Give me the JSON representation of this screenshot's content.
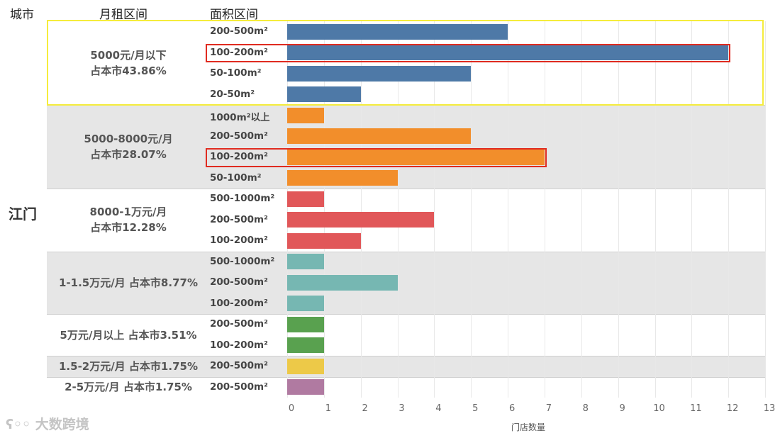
{
  "headers": {
    "city": "城市",
    "rent": "月租区间",
    "area": "面积区间"
  },
  "city": "江门",
  "watermark": "大数跨境",
  "colors": {
    "blue": "#4e79a7",
    "orange": "#f28e2b",
    "red": "#e15759",
    "teal": "#76b7b2",
    "green": "#59a14f",
    "yellow": "#edc948",
    "purple": "#b07aa1",
    "yellow_box": "#f5ec3c",
    "red_box": "#e02b20"
  },
  "chart_data": {
    "type": "bar",
    "orientation": "horizontal",
    "xlabel": "门店数量",
    "xlim": [
      0,
      13
    ],
    "xticks": [
      0,
      1,
      2,
      3,
      4,
      5,
      6,
      7,
      8,
      9,
      10,
      11,
      12,
      13
    ],
    "groups": [
      {
        "line1": "5000元/月以下",
        "line2": "占本市43.86%",
        "label": "",
        "color": "#4e79a7",
        "shaded": false,
        "bars": [
          {
            "area": "200-500m²",
            "value": 6
          },
          {
            "area": "100-200m²",
            "value": 12
          },
          {
            "area": "50-100m²",
            "value": 5
          },
          {
            "area": "20-50m²",
            "value": 2
          }
        ]
      },
      {
        "line1": "5000-8000元/月",
        "line2": "占本市28.07%",
        "label": "",
        "color": "#f28e2b",
        "shaded": true,
        "bars": [
          {
            "area": "1000m²以上",
            "value": 1
          },
          {
            "area": "200-500m²",
            "value": 5
          },
          {
            "area": "100-200m²",
            "value": 7
          },
          {
            "area": "50-100m²",
            "value": 3
          }
        ]
      },
      {
        "line1": "8000-1万元/月",
        "line2": "占本市12.28%",
        "label": "",
        "color": "#e15759",
        "shaded": false,
        "bars": [
          {
            "area": "500-1000m²",
            "value": 1
          },
          {
            "area": "200-500m²",
            "value": 4
          },
          {
            "area": "100-200m²",
            "value": 2
          }
        ]
      },
      {
        "line1": "",
        "line2": "",
        "label": "1-1.5万元/月  占本市8.77%",
        "color": "#76b7b2",
        "shaded": true,
        "bars": [
          {
            "area": "500-1000m²",
            "value": 1
          },
          {
            "area": "200-500m²",
            "value": 3
          },
          {
            "area": "100-200m²",
            "value": 1
          }
        ]
      },
      {
        "line1": "",
        "line2": "",
        "label": "5万元/月以上  占本市3.51%",
        "color": "#59a14f",
        "shaded": false,
        "bars": [
          {
            "area": "200-500m²",
            "value": 1
          },
          {
            "area": "100-200m²",
            "value": 1
          }
        ]
      },
      {
        "line1": "",
        "line2": "",
        "label": "1.5-2万元/月  占本市1.75%",
        "color": "#edc948",
        "shaded": true,
        "bars": [
          {
            "area": "200-500m²",
            "value": 1
          }
        ]
      },
      {
        "line1": "",
        "line2": "",
        "label": "2-5万元/月  占本市1.75%",
        "color": "#b07aa1",
        "shaded": false,
        "bars": [
          {
            "area": "200-500m²",
            "value": 1
          }
        ]
      }
    ],
    "highlights": [
      {
        "type": "group",
        "group": 0,
        "color": "#f5ec3c"
      },
      {
        "type": "bar",
        "group": 0,
        "bar": 1,
        "color": "#e02b20"
      },
      {
        "type": "bar",
        "group": 1,
        "bar": 2,
        "color": "#e02b20"
      }
    ]
  }
}
